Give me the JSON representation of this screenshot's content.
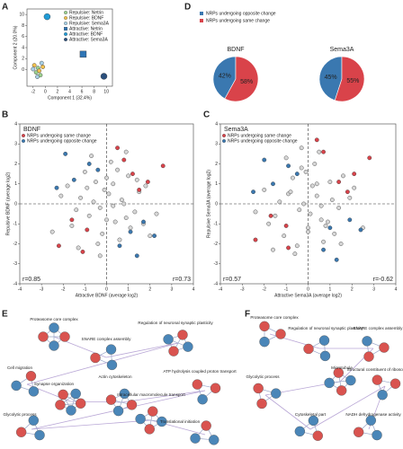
{
  "chart_data": [
    {
      "panel": "A",
      "type": "scatter",
      "x_label": "Component 1 (32.4%)",
      "y_label": "Component 2 (20.0%)",
      "xlim": [
        -3,
        11
      ],
      "ylim": [
        -3,
        11
      ],
      "xticks": [
        -2,
        0,
        2,
        4,
        6,
        8,
        10
      ],
      "yticks": [
        0,
        2,
        4,
        6,
        8,
        10
      ],
      "legend": "upper right",
      "series": [
        {
          "name": "Repulsive: Netrin",
          "color": "#9bd08f",
          "marker": "circle",
          "x": [
            -1.5,
            -1.2,
            -0.8
          ],
          "y": [
            -0.5,
            0.3,
            -1.0
          ]
        },
        {
          "name": "Repulsive: BDNF",
          "color": "#f2c14e",
          "marker": "circle",
          "x": [
            -1.8,
            -1.0,
            -0.4
          ],
          "y": [
            0.8,
            -0.2,
            0.5
          ]
        },
        {
          "name": "Repulsive: Sema3A",
          "color": "#a6cee3",
          "marker": "circle",
          "x": [
            -1.3,
            -0.6,
            -2.0
          ],
          "y": [
            -1.3,
            1.2,
            0.1
          ]
        },
        {
          "name": "Attractive: Netrin",
          "color": "#2e75b6",
          "marker": "square",
          "x": [
            6.2
          ],
          "y": [
            2.8
          ]
        },
        {
          "name": "Attractive: BDNF",
          "color": "#1f9bd6",
          "marker": "circle",
          "x": [
            0.3
          ],
          "y": [
            9.6
          ]
        },
        {
          "name": "Attractive: Sema3A",
          "color": "#2b4f7c",
          "marker": "circle",
          "x": [
            9.6
          ],
          "y": [
            -1.2
          ]
        }
      ]
    },
    {
      "panel": "D",
      "type": "pie",
      "title": "BDNF",
      "legend": "top",
      "categories": [
        "NRPs undergoing opposite change",
        "NRPs undergoing same change"
      ],
      "values": [
        42,
        58
      ],
      "value_labels": [
        "42%",
        "58%"
      ],
      "colors": [
        "#3a78b0",
        "#d9434a"
      ]
    },
    {
      "type": "pie",
      "title": "Sema3A",
      "values": [
        45,
        55
      ],
      "value_labels": [
        "45%",
        "55%"
      ],
      "colors": [
        "#3a78b0",
        "#d9434a"
      ]
    },
    {
      "panel": "B",
      "type": "scatter",
      "title": "BDNF",
      "x_label": "Attractive BDNF (average log2)",
      "y_label": "Repulsive BDNF (average log2)",
      "xlim": [
        -4,
        4
      ],
      "ylim": [
        -4,
        4
      ],
      "xticks": [
        -4,
        -3,
        -2,
        -1,
        0,
        1,
        2,
        3,
        4
      ],
      "yticks": [
        -4,
        -3,
        -2,
        -1,
        0,
        1,
        2,
        3,
        4
      ],
      "legend": "upper left",
      "zero_lines": true,
      "annotations": [
        {
          "text": "r=0.85",
          "color": "#d9434a",
          "corner": "lower left"
        },
        {
          "text": "r=0.73",
          "color": "#3a78b0",
          "corner": "lower right"
        }
      ],
      "series": [
        {
          "color": "#d6d6d6",
          "x": [
            -1.2,
            -0.8,
            -0.5,
            -0.3,
            0.1,
            0.4,
            0.7,
            1.0,
            1.3,
            -1.6,
            -0.9,
            -0.2,
            0.3,
            0.9,
            1.5,
            -2.1,
            -1.4,
            -0.6,
            0.0,
            0.5,
            1.1,
            1.8,
            -0.4,
            0.2,
            0.8,
            -1.0,
            -0.1,
            0.6,
            -2.5,
            2.3,
            -0.7,
            1.4,
            0.3,
            -1.8,
            2.0,
            -0.3,
            0.9,
            -1.3,
            0.0,
            1.7
          ],
          "y": [
            0.3,
            -0.6,
            1.1,
            -0.2,
            0.5,
            -0.9,
            0.2,
            1.4,
            -0.4,
            -1.1,
            0.8,
            -1.5,
            1.0,
            -0.7,
            0.6,
            0.4,
            -0.3,
            0.1,
            -0.8,
            1.7,
            -1.2,
            0.9,
            -2.0,
            2.1,
            0.0,
            1.6,
            0.7,
            -1.8,
            -1.4,
            -0.5,
            2.4,
            1.2,
            -0.1,
            0.9,
            -1.6,
            -2.6,
            2.6,
            -2.2,
            1.3,
            -1.0
          ]
        },
        {
          "name": "NRPs undergoing same change",
          "color": "#d9434a",
          "x": [
            1.2,
            0.8,
            1.9,
            -0.9,
            -1.6,
            2.6,
            -2.2,
            0.5,
            1.5,
            -1.1
          ],
          "y": [
            1.5,
            2.2,
            1.1,
            -1.3,
            -0.8,
            1.9,
            -2.1,
            2.8,
            0.7,
            -2.4
          ]
        },
        {
          "name": "NRPs undergoing opposite change",
          "color": "#3a78b0",
          "x": [
            -1.5,
            -0.8,
            -2.3,
            1.1,
            1.7,
            0.6,
            -1.9,
            2.2,
            -0.4,
            1.4
          ],
          "y": [
            1.2,
            2.0,
            0.8,
            -1.4,
            -0.9,
            -2.1,
            2.5,
            -1.6,
            1.7,
            -2.6
          ]
        }
      ]
    },
    {
      "panel": "C",
      "type": "scatter",
      "title": "Sema3A",
      "x_label": "Attractive Sema3A (average log2)",
      "y_label": "Repulsive Sema3A (average log2)",
      "xlim": [
        -4,
        4
      ],
      "ylim": [
        -4,
        4
      ],
      "xticks": [
        -4,
        -3,
        -2,
        -1,
        0,
        1,
        2,
        3,
        4
      ],
      "yticks": [
        -4,
        -3,
        -2,
        -1,
        0,
        1,
        2,
        3,
        4
      ],
      "legend": "upper left",
      "zero_lines": true,
      "annotations": [
        {
          "text": "r=0.57",
          "color": "#d9434a",
          "corner": "lower left"
        },
        {
          "text": "r=-0.62",
          "color": "#3a78b0",
          "corner": "lower right"
        }
      ],
      "series": [
        {
          "color": "#d6d6d6",
          "x": [
            -0.9,
            -0.4,
            0.2,
            0.6,
            1.1,
            -1.5,
            -0.7,
            0.0,
            0.4,
            1.4,
            -2.0,
            -1.1,
            -0.3,
            0.8,
            1.9,
            -0.5,
            0.3,
            1.0,
            -1.3,
            0.1,
            0.7,
            -0.2,
            1.6,
            -1.8,
            0.5,
            -0.6,
            1.2,
            -2.4,
            2.1,
            -0.1,
            0.9,
            -1.0,
            0.0,
            1.5,
            -0.8,
            0.4,
            -1.6,
            2.5,
            -0.3,
            0.6
          ],
          "y": [
            0.5,
            -0.3,
            0.9,
            -0.8,
            0.2,
            -0.6,
            1.3,
            -1.2,
            0.4,
            -0.2,
            0.7,
            -1.6,
            1.8,
            -1.1,
            0.3,
            -2.1,
            2.0,
            1.1,
            0.1,
            -0.5,
            -1.9,
            0.0,
            1.4,
            -1.0,
            2.6,
            -2.5,
            -1.5,
            -0.4,
            0.8,
            1.6,
            -0.9,
            2.3,
            -1.4,
            -2.0,
            0.6,
            1.0,
            -2.3,
            -1.2,
            2.8,
            -0.1
          ]
        },
        {
          "name": "NRPs undergoing same change",
          "color": "#d9434a",
          "x": [
            1.4,
            0.7,
            2.1,
            -1.0,
            -1.7,
            2.8,
            -2.4,
            0.4,
            1.8,
            -0.9
          ],
          "y": [
            1.1,
            2.6,
            1.5,
            -1.1,
            -0.6,
            2.3,
            -1.8,
            3.2,
            0.6,
            -2.2
          ]
        },
        {
          "name": "NRPs undergoing opposite change",
          "color": "#3a78b0",
          "x": [
            -1.6,
            -0.9,
            -2.5,
            1.0,
            1.9,
            0.7,
            -2.0,
            2.4,
            -0.5,
            1.3
          ],
          "y": [
            1.0,
            1.9,
            0.6,
            -1.2,
            -0.8,
            -2.3,
            2.2,
            -1.3,
            1.5,
            -2.8
          ]
        }
      ]
    }
  ],
  "networks": [
    {
      "panel": "E",
      "labels": [
        "Proteasome core complex",
        "SNARE complex assembly",
        "Regulation of neuronal synaptic plasticity",
        "Cell migration",
        "Synapse organization",
        "Actin cytoskeleton",
        "ATP hydrolysis coupled proton transport",
        "Glycolytic process",
        "Intracellular macromolecule transport",
        "Translational initiation"
      ]
    },
    {
      "panel": "F",
      "labels": [
        "Proteasome core complex",
        "Regulation of neuronal synaptic plasticity",
        "SNARE complex assembly",
        "Microtubule",
        "Glycolytic process",
        "Cytoskeletal part",
        "Structural constituent of ribosome",
        "NADH dehydrogenase activity"
      ]
    }
  ]
}
